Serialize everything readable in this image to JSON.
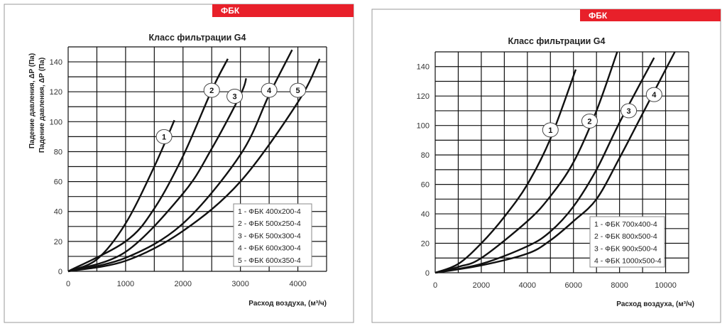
{
  "chart_data": [
    {
      "type": "line",
      "brand": "ФБК",
      "title": "Класс фильтрации G4",
      "xlabel": "Расход воздуха, (м³/ч)",
      "ylabel": "Падение давления, ΔP (Па)",
      "xlim": [
        0,
        4500
      ],
      "ylim": [
        0,
        150
      ],
      "xticks": [
        0,
        1000,
        2000,
        3000,
        4000
      ],
      "yticks": [
        0,
        20,
        40,
        60,
        80,
        100,
        120,
        140
      ],
      "xgrid_step": 500,
      "ygrid_step": 10,
      "legend_position": "bottom-right",
      "series": [
        {
          "name": "1",
          "legend": "1 - ФБК 400x200-4",
          "x": [
            0,
            500,
            1000,
            1500,
            1850
          ],
          "y": [
            0,
            8,
            32,
            70,
            101
          ],
          "label_at": [
            1670,
            90
          ]
        },
        {
          "name": "2",
          "legend": "2 - ФБК 500x250-4",
          "x": [
            0,
            1000,
            1500,
            2000,
            2500,
            2780
          ],
          "y": [
            0,
            20,
            42,
            77,
            121,
            142
          ],
          "label_at": [
            2500,
            121
          ]
        },
        {
          "name": "3",
          "legend": "3 - ФБК 500x300-4",
          "x": [
            0,
            1000,
            2000,
            2500,
            3000,
            3100
          ],
          "y": [
            0,
            13,
            52,
            82,
            118,
            129
          ],
          "label_at": [
            2900,
            117
          ]
        },
        {
          "name": "4",
          "legend": "4 - ФБК 600x300-4",
          "x": [
            0,
            1000,
            2000,
            3000,
            3500,
            3900
          ],
          "y": [
            0,
            9,
            32,
            78,
            118,
            148
          ],
          "label_at": [
            3500,
            121
          ]
        },
        {
          "name": "5",
          "legend": "5 - ФБК 600x350-4",
          "x": [
            0,
            1000,
            2000,
            3000,
            4000,
            4380
          ],
          "y": [
            0,
            7,
            27,
            60,
            113,
            142
          ],
          "label_at": [
            4000,
            121
          ]
        }
      ]
    },
    {
      "type": "line",
      "brand": "ФБК",
      "title": "Класс фильтрации G4",
      "xlabel": "Расход воздуха, (м³/ч)",
      "ylabel": "Падение давления, ΔP (Па)",
      "xlim": [
        0,
        11000
      ],
      "ylim": [
        0,
        150
      ],
      "xticks": [
        0,
        2000,
        4000,
        6000,
        8000,
        10000
      ],
      "yticks": [
        0,
        20,
        40,
        60,
        80,
        100,
        120,
        140
      ],
      "xgrid_step": 1000,
      "ygrid_step": 10,
      "legend_position": "bottom-right",
      "series": [
        {
          "name": "1",
          "legend": "1 - ФБК 700x400-4",
          "x": [
            0,
            1000,
            2000,
            3000,
            4000,
            5000,
            6100
          ],
          "y": [
            0,
            6,
            20,
            38,
            60,
            91,
            138
          ],
          "label_at": [
            5000,
            97
          ]
        },
        {
          "name": "2",
          "legend": "2 - ФБК 800x500-4",
          "x": [
            0,
            1000,
            2000,
            4000,
            5000,
            6000,
            7000,
            7900
          ],
          "y": [
            0,
            4,
            10,
            35,
            52,
            75,
            110,
            150
          ],
          "label_at": [
            6700,
            103
          ]
        },
        {
          "name": "3",
          "legend": "3 - ФБК 900x500-4",
          "x": [
            0,
            2000,
            4000,
            5000,
            6000,
            7000,
            8000,
            9500
          ],
          "y": [
            0,
            6,
            18,
            28,
            45,
            70,
            102,
            146
          ],
          "label_at": [
            8400,
            110
          ]
        },
        {
          "name": "4",
          "legend": "4 - ФБК 1000x500-4",
          "x": [
            0,
            2000,
            4000,
            5000,
            6000,
            7000,
            8000,
            9000,
            10400
          ],
          "y": [
            0,
            5,
            13,
            22,
            35,
            50,
            78,
            108,
            150
          ],
          "label_at": [
            9500,
            121
          ]
        }
      ]
    }
  ]
}
